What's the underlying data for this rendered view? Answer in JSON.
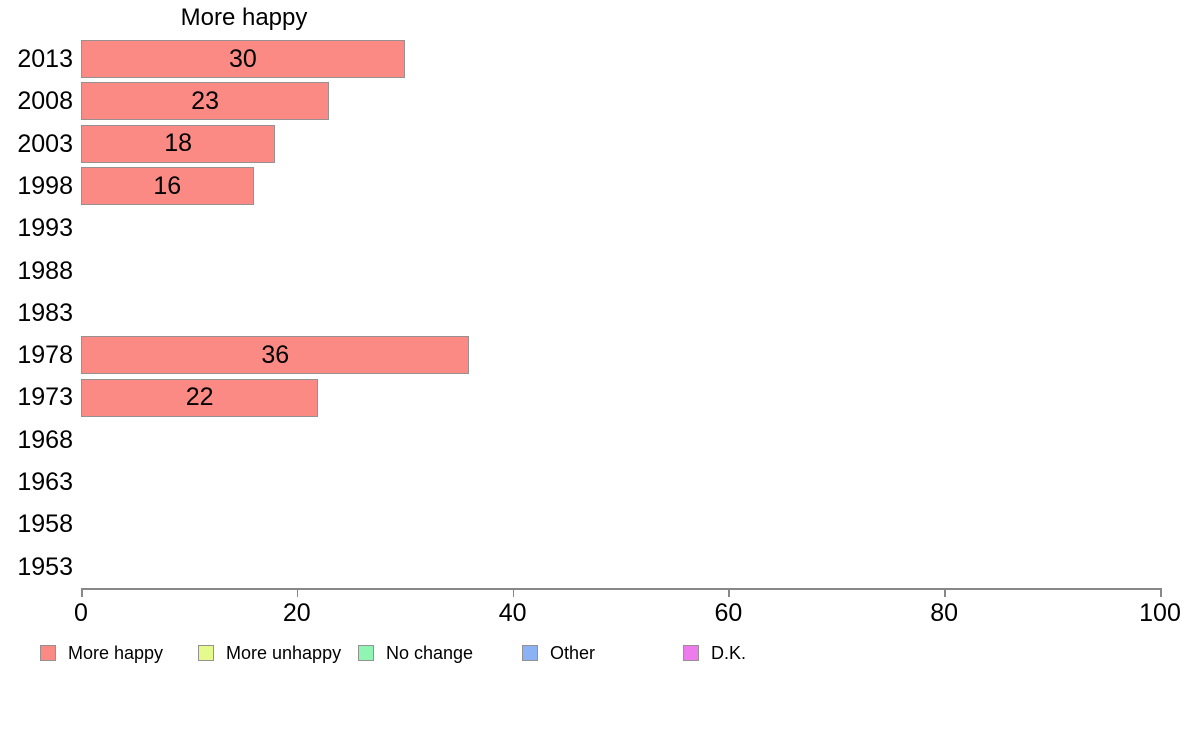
{
  "chart_data": {
    "type": "bar",
    "orientation": "horizontal",
    "title": "More happy",
    "categories": [
      "2013",
      "2008",
      "2003",
      "1998",
      "1993",
      "1988",
      "1983",
      "1978",
      "1973",
      "1968",
      "1963",
      "1958",
      "1953"
    ],
    "values": [
      30,
      23,
      18,
      16,
      null,
      null,
      null,
      36,
      22,
      null,
      null,
      null,
      null
    ],
    "value_labels_inside_bars": true,
    "xlabel": "",
    "ylabel": "",
    "xlim": [
      0,
      100
    ],
    "xticks": [
      0,
      20,
      40,
      60,
      80,
      100
    ],
    "grid": false,
    "bar_fill_color": "#FB8A85",
    "bar_border_color": "#969090",
    "axis_color": "#888888",
    "legend_position": "bottom",
    "legend": [
      {
        "label": "More happy",
        "color": "#FB8A85"
      },
      {
        "label": "More unhappy",
        "color": "#E5FA8C"
      },
      {
        "label": "No change",
        "color": "#90F5B2"
      },
      {
        "label": "Other",
        "color": "#8AB2F5"
      },
      {
        "label": "D.K.",
        "color": "#EE7BEB"
      }
    ]
  }
}
